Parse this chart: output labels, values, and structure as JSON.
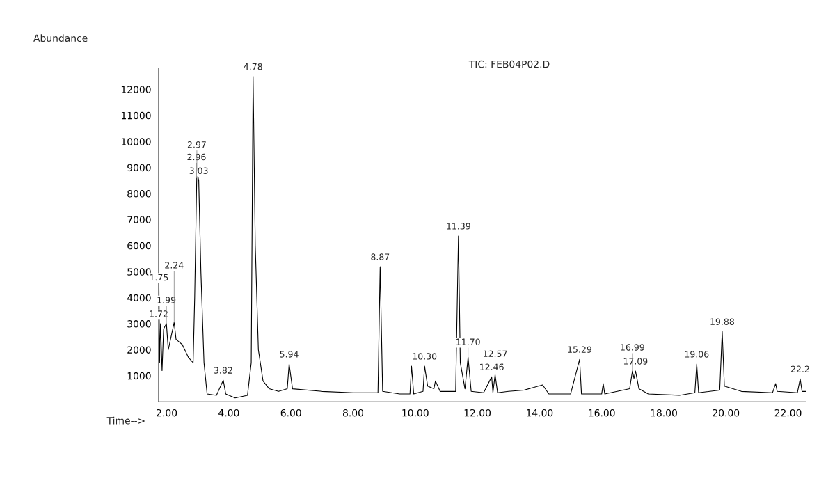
{
  "chart_data": {
    "type": "line",
    "title": "TIC: FEB04P02.D",
    "xlabel": "Time-->",
    "ylabel": "Abundance",
    "x": [
      1.74,
      1.75,
      1.77,
      1.8,
      1.85,
      1.9,
      1.99,
      2.05,
      2.24,
      2.3,
      2.5,
      2.7,
      2.85,
      2.9,
      2.97,
      3.03,
      3.1,
      3.2,
      3.3,
      3.6,
      3.82,
      3.9,
      4.2,
      4.6,
      4.72,
      4.78,
      4.85,
      4.95,
      5.1,
      5.3,
      5.6,
      5.88,
      5.94,
      6.05,
      7.0,
      8.0,
      8.8,
      8.87,
      8.95,
      9.5,
      9.83,
      9.88,
      9.95,
      10.25,
      10.3,
      10.4,
      10.6,
      10.65,
      10.8,
      11.3,
      11.39,
      11.45,
      11.6,
      11.7,
      11.8,
      12.2,
      12.46,
      12.5,
      12.57,
      12.65,
      13.0,
      13.5,
      13.8,
      14.1,
      14.3,
      15.0,
      15.29,
      15.35,
      16.0,
      16.05,
      16.1,
      16.9,
      16.99,
      17.04,
      17.09,
      17.2,
      17.5,
      18.5,
      19.0,
      19.06,
      19.12,
      19.8,
      19.88,
      19.95,
      20.5,
      21.5,
      21.6,
      21.65,
      22.3,
      22.39,
      22.45,
      22.57
    ],
    "series": [
      {
        "color": "#000000",
        "values": [
          3000,
          4400,
          1500,
          3000,
          1200,
          2800,
          3000,
          2000,
          3050,
          2400,
          2200,
          1700,
          1500,
          4000,
          8860,
          8500,
          5000,
          1500,
          300,
          250,
          830,
          300,
          150,
          250,
          1500,
          12500,
          6000,
          2000,
          800,
          500,
          400,
          500,
          1450,
          500,
          400,
          350,
          350,
          5190,
          400,
          300,
          300,
          1370,
          300,
          400,
          1370,
          600,
          500,
          800,
          400,
          400,
          6370,
          1500,
          500,
          1710,
          400,
          350,
          960,
          350,
          1040,
          350,
          400,
          450,
          550,
          650,
          300,
          300,
          1630,
          300,
          300,
          700,
          300,
          500,
          1180,
          900,
          1180,
          500,
          300,
          250,
          350,
          1450,
          350,
          450,
          2700,
          600,
          400,
          350,
          700,
          400,
          350,
          880,
          400,
          400
        ]
      }
    ],
    "xlim": [
      1.74,
      22.57
    ],
    "ylim": [
      0,
      12800
    ],
    "xticks": [
      {
        "value": 2,
        "label": "2.00"
      },
      {
        "value": 4,
        "label": "4.00"
      },
      {
        "value": 6,
        "label": "6.00"
      },
      {
        "value": 8,
        "label": "8.00"
      },
      {
        "value": 10,
        "label": "10.00"
      },
      {
        "value": 12,
        "label": "12.00"
      },
      {
        "value": 14,
        "label": "14.00"
      },
      {
        "value": 16,
        "label": "16.00"
      },
      {
        "value": 18,
        "label": "18.00"
      },
      {
        "value": 20,
        "label": "20.00"
      },
      {
        "value": 22,
        "label": "22.00"
      }
    ],
    "yticks": [
      1000,
      2000,
      3000,
      4000,
      5000,
      6000,
      7000,
      8000,
      9000,
      10000,
      11000,
      12000
    ],
    "grid": false,
    "legend": false,
    "marker": "none",
    "line_style": "solid",
    "annotations": [
      {
        "text": "1.75",
        "x": 1.75,
        "y": 4400
      },
      {
        "text": "1.72",
        "x": 1.74,
        "y": 3000
      },
      {
        "text": "1.99",
        "x": 1.99,
        "y": 3000
      },
      {
        "text": "2.24",
        "x": 2.24,
        "y": 3050
      },
      {
        "text": "3.03",
        "x": 3.03,
        "y": 8500
      },
      {
        "text": "2.96",
        "x": 2.96,
        "y": 8600
      },
      {
        "text": "2.97",
        "x": 2.97,
        "y": 8860
      },
      {
        "text": "3.82",
        "x": 3.82,
        "y": 830
      },
      {
        "text": "4.78",
        "x": 4.78,
        "y": 12500
      },
      {
        "text": "5.94",
        "x": 5.94,
        "y": 1450
      },
      {
        "text": "8.87",
        "x": 8.87,
        "y": 5190
      },
      {
        "text": "10.30",
        "x": 10.3,
        "y": 1370
      },
      {
        "text": "11.39",
        "x": 11.39,
        "y": 6370
      },
      {
        "text": "12.46",
        "x": 12.46,
        "y": 960
      },
      {
        "text": "12.57",
        "x": 12.57,
        "y": 1040
      },
      {
        "text": "11.70",
        "x": 11.7,
        "y": 1710
      },
      {
        "text": "15.29",
        "x": 15.29,
        "y": 1630
      },
      {
        "text": "17.09",
        "x": 17.09,
        "y": 1180
      },
      {
        "text": "16.99",
        "x": 16.99,
        "y": 1180
      },
      {
        "text": "19.06",
        "x": 19.06,
        "y": 1450
      },
      {
        "text": "19.88",
        "x": 19.88,
        "y": 2700
      },
      {
        "text": "22.2",
        "x": 22.39,
        "y": 880
      }
    ]
  }
}
